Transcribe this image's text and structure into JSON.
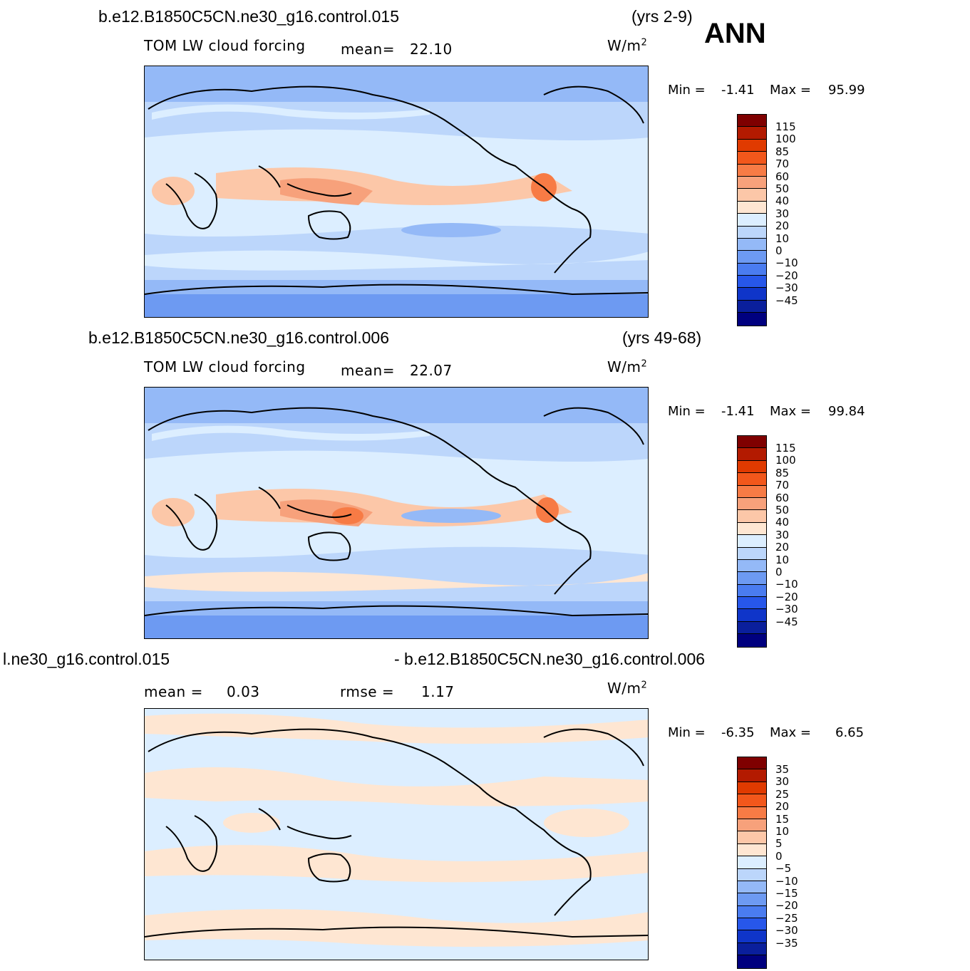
{
  "season": "ANN",
  "colors": {
    "scale1": [
      "#7f0000",
      "#b31a00",
      "#e03a00",
      "#f2571b",
      "#f77b45",
      "#f7a17b",
      "#fcc7a8",
      "#fee6d2",
      "#dceeff",
      "#bcd6fb",
      "#94b9f7",
      "#6d9af2",
      "#4a7cf0",
      "#2757ea",
      "#0f35c9",
      "#0a1f9c",
      "#00007f"
    ],
    "scale3": [
      "#7f0000",
      "#b31a00",
      "#e03a00",
      "#f2571b",
      "#f77b45",
      "#f7a17b",
      "#fcc7a8",
      "#fee6d2",
      "#dceeff",
      "#bcd6fb",
      "#94b9f7",
      "#6d9af2",
      "#4a7cf0",
      "#2757ea",
      "#0f35c9",
      "#0a1f9c",
      "#00007f"
    ]
  },
  "panels": [
    {
      "case": "b.e12.B1850C5CN.ne30_g16.control.015",
      "years": "(yrs 2-9)",
      "variable": "TOM LW cloud forcing",
      "stat_label": "mean=",
      "stat_value": "22.10",
      "units": "W/m",
      "units_exp": "2",
      "min_label": "Min =",
      "min_value": "-1.41",
      "max_label": "Max =",
      "max_value": "95.99",
      "levels": [
        "115",
        "100",
        "85",
        "70",
        "60",
        "50",
        "40",
        "30",
        "20",
        "10",
        "0",
        "-10",
        "-20",
        "-30",
        "-45"
      ]
    },
    {
      "case": "b.e12.B1850C5CN.ne30_g16.control.006",
      "years": "(yrs 49-68)",
      "variable": "TOM LW cloud forcing",
      "stat_label": "mean=",
      "stat_value": "22.07",
      "units": "W/m",
      "units_exp": "2",
      "min_label": "Min =",
      "min_value": "-1.41",
      "max_label": "Max =",
      "max_value": "99.84",
      "levels": [
        "115",
        "100",
        "85",
        "70",
        "60",
        "50",
        "40",
        "30",
        "20",
        "10",
        "0",
        "-10",
        "-20",
        "-30",
        "-45"
      ]
    },
    {
      "case_left": "l.ne30_g16.control.015",
      "case_right": "- b.e12.B1850C5CN.ne30_g16.control.006",
      "mean_label": "mean =",
      "mean_value": "0.03",
      "rmse_label": "rmse =",
      "rmse_value": "1.17",
      "units": "W/m",
      "units_exp": "2",
      "min_label": "Min =",
      "min_value": "-6.35",
      "max_label": "Max =",
      "max_value": "6.65",
      "levels": [
        "35",
        "30",
        "25",
        "20",
        "15",
        "10",
        "5",
        "0",
        "-5",
        "-10",
        "-15",
        "-20",
        "-25",
        "-30",
        "-35"
      ]
    }
  ]
}
